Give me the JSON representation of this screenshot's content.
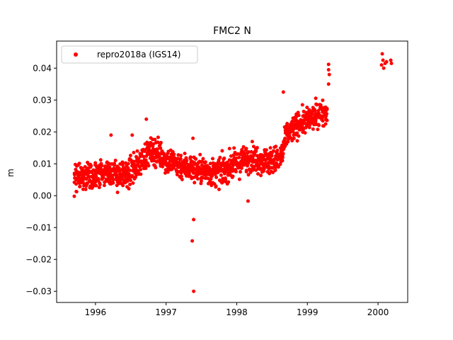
{
  "chart_data": {
    "type": "scatter",
    "title": "FMC2 N",
    "xlabel": "",
    "ylabel": "m",
    "xlim": [
      1995.45,
      2000.42
    ],
    "ylim": [
      -0.0335,
      0.0485
    ],
    "xticks": [
      1996,
      1997,
      1998,
      1999,
      2000
    ],
    "yticks": [
      -0.03,
      -0.02,
      -0.01,
      0.0,
      0.01,
      0.02,
      0.03,
      0.04
    ],
    "grid": false,
    "legend_position": "top-left",
    "marker_color": "#ff0000",
    "series": [
      {
        "name": "repro2018a (IGS14)",
        "color": "#ff0000",
        "trend": [
          [
            1995.7,
            0.0055
          ],
          [
            1995.8,
            0.006
          ],
          [
            1995.9,
            0.0065
          ],
          [
            1996.0,
            0.0062
          ],
          [
            1996.1,
            0.007
          ],
          [
            1996.2,
            0.0075
          ],
          [
            1996.3,
            0.0065
          ],
          [
            1996.4,
            0.006
          ],
          [
            1996.5,
            0.0075
          ],
          [
            1996.6,
            0.0095
          ],
          [
            1996.7,
            0.0125
          ],
          [
            1996.8,
            0.014
          ],
          [
            1996.9,
            0.0135
          ],
          [
            1997.0,
            0.011
          ],
          [
            1997.1,
            0.0105
          ],
          [
            1997.2,
            0.0095
          ],
          [
            1997.3,
            0.009
          ],
          [
            1997.4,
            0.0085
          ],
          [
            1997.5,
            0.008
          ],
          [
            1997.6,
            0.0075
          ],
          [
            1997.7,
            0.007
          ],
          [
            1997.8,
            0.008
          ],
          [
            1997.9,
            0.009
          ],
          [
            1998.0,
            0.01
          ],
          [
            1998.1,
            0.011
          ],
          [
            1998.2,
            0.012
          ],
          [
            1998.3,
            0.0115
          ],
          [
            1998.4,
            0.011
          ],
          [
            1998.5,
            0.011
          ],
          [
            1998.6,
            0.0115
          ],
          [
            1998.65,
            0.013
          ],
          [
            1998.7,
            0.019
          ],
          [
            1998.8,
            0.021
          ],
          [
            1998.9,
            0.023
          ],
          [
            1999.0,
            0.0235
          ],
          [
            1999.1,
            0.025
          ],
          [
            1999.2,
            0.026
          ],
          [
            1999.28,
            0.0265
          ]
        ],
        "points": [
          [
            2000.05,
            0.041
          ],
          [
            2000.06,
            0.0445
          ],
          [
            2000.07,
            0.0425
          ],
          [
            2000.08,
            0.04
          ],
          [
            2000.1,
            0.0415
          ],
          [
            2000.12,
            0.042
          ],
          [
            2000.18,
            0.0425
          ],
          [
            2000.19,
            0.0415
          ],
          [
            1997.39,
            -0.0075
          ],
          [
            1997.37,
            -0.0142
          ],
          [
            1997.39,
            -0.03
          ],
          [
            1998.16,
            -0.0017
          ],
          [
            1998.66,
            0.0325
          ],
          [
            1999.3,
            0.0412
          ],
          [
            1999.3,
            0.0395
          ],
          [
            1999.31,
            0.038
          ],
          [
            1999.3,
            0.035
          ],
          [
            1995.7,
            -0.0002
          ],
          [
            1996.72,
            0.024
          ],
          [
            1996.52,
            0.019
          ],
          [
            1996.22,
            0.019
          ],
          [
            1997.38,
            0.018
          ]
        ]
      }
    ]
  }
}
